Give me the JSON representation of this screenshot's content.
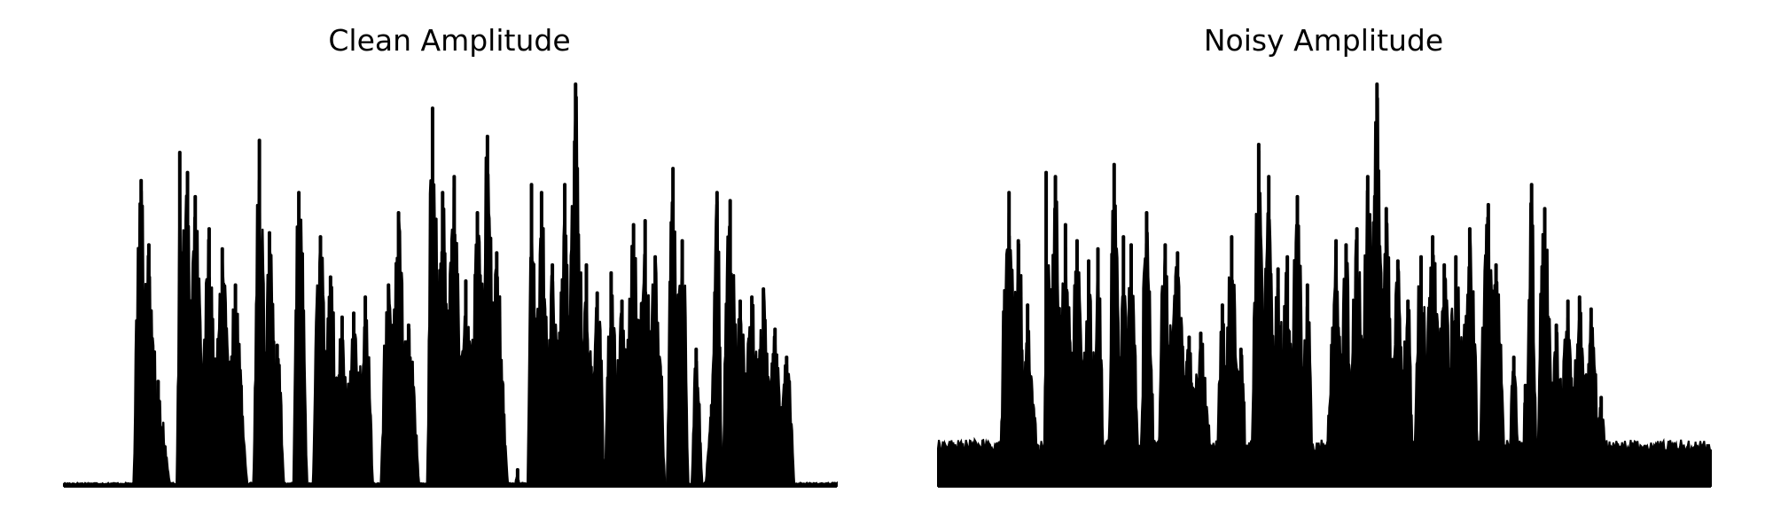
{
  "charts": [
    {
      "title": "Clean Amplitude"
    },
    {
      "title": "Noisy Amplitude"
    }
  ],
  "chart_data": [
    {
      "type": "area",
      "title": "Clean Amplitude",
      "xlabel": "",
      "ylabel": "",
      "axes": "off",
      "grid": false,
      "ylim": [
        0,
        1
      ],
      "color": "#000000",
      "noise_floor": 0.0,
      "segments": [
        {
          "start": 0.09,
          "end": 0.138,
          "peaks": [
            [
              0.1,
              0.76
            ],
            [
              0.11,
              0.6
            ],
            [
              0.122,
              0.26
            ]
          ]
        },
        {
          "start": 0.146,
          "end": 0.238,
          "peaks": [
            [
              0.15,
              0.83
            ],
            [
              0.16,
              0.78
            ],
            [
              0.17,
              0.72
            ],
            [
              0.188,
              0.64
            ],
            [
              0.205,
              0.59
            ],
            [
              0.222,
              0.5
            ]
          ]
        },
        {
          "start": 0.245,
          "end": 0.285,
          "peaks": [
            [
              0.253,
              0.86
            ],
            [
              0.266,
              0.63
            ],
            [
              0.276,
              0.35
            ]
          ]
        },
        {
          "start": 0.297,
          "end": 0.315,
          "peaks": [
            [
              0.304,
              0.73
            ]
          ]
        },
        {
          "start": 0.322,
          "end": 0.4,
          "peaks": [
            [
              0.332,
              0.62
            ],
            [
              0.345,
              0.52
            ],
            [
              0.36,
              0.42
            ],
            [
              0.375,
              0.43
            ],
            [
              0.39,
              0.47
            ]
          ]
        },
        {
          "start": 0.41,
          "end": 0.46,
          "peaks": [
            [
              0.42,
              0.5
            ],
            [
              0.433,
              0.68
            ],
            [
              0.446,
              0.4
            ]
          ]
        },
        {
          "start": 0.47,
          "end": 0.575,
          "peaks": [
            [
              0.477,
              0.94
            ],
            [
              0.49,
              0.73
            ],
            [
              0.505,
              0.77
            ],
            [
              0.52,
              0.51
            ],
            [
              0.535,
              0.68
            ],
            [
              0.548,
              0.87
            ],
            [
              0.56,
              0.58
            ]
          ]
        },
        {
          "start": 0.583,
          "end": 0.59,
          "peaks": [
            [
              0.587,
              0.04
            ]
          ]
        },
        {
          "start": 0.6,
          "end": 0.7,
          "peaks": [
            [
              0.605,
              0.75
            ],
            [
              0.618,
              0.73
            ],
            [
              0.632,
              0.55
            ],
            [
              0.648,
              0.75
            ],
            [
              0.662,
              1.0
            ],
            [
              0.676,
              0.55
            ],
            [
              0.69,
              0.48
            ]
          ]
        },
        {
          "start": 0.7,
          "end": 0.778,
          "peaks": [
            [
              0.708,
              0.53
            ],
            [
              0.722,
              0.46
            ],
            [
              0.737,
              0.65
            ],
            [
              0.752,
              0.66
            ],
            [
              0.765,
              0.57
            ]
          ]
        },
        {
          "start": 0.78,
          "end": 0.808,
          "peaks": [
            [
              0.788,
              0.79
            ],
            [
              0.8,
              0.61
            ]
          ]
        },
        {
          "start": 0.812,
          "end": 0.826,
          "peaks": [
            [
              0.818,
              0.34
            ]
          ]
        },
        {
          "start": 0.83,
          "end": 0.852,
          "peaks": [
            [
              0.838,
              0.2
            ],
            [
              0.845,
              0.73
            ]
          ]
        },
        {
          "start": 0.852,
          "end": 0.945,
          "peaks": [
            [
              0.862,
              0.71
            ],
            [
              0.875,
              0.46
            ],
            [
              0.89,
              0.47
            ],
            [
              0.905,
              0.49
            ],
            [
              0.92,
              0.39
            ],
            [
              0.935,
              0.32
            ]
          ]
        }
      ]
    },
    {
      "type": "area",
      "title": "Noisy Amplitude",
      "xlabel": "",
      "ylabel": "",
      "axes": "off",
      "grid": false,
      "ylim": [
        0,
        1
      ],
      "color": "#000000",
      "noise_floor": 0.1,
      "segments": [
        {
          "start": 0.08,
          "end": 0.13,
          "peaks": [
            [
              0.092,
              0.73
            ],
            [
              0.104,
              0.61
            ],
            [
              0.116,
              0.45
            ]
          ]
        },
        {
          "start": 0.137,
          "end": 0.215,
          "peaks": [
            [
              0.14,
              0.78
            ],
            [
              0.152,
              0.77
            ],
            [
              0.165,
              0.65
            ],
            [
              0.18,
              0.61
            ],
            [
              0.195,
              0.56
            ],
            [
              0.207,
              0.59
            ]
          ]
        },
        {
          "start": 0.22,
          "end": 0.26,
          "peaks": [
            [
              0.228,
              0.8
            ],
            [
              0.24,
              0.62
            ],
            [
              0.25,
              0.6
            ]
          ]
        },
        {
          "start": 0.262,
          "end": 0.28,
          "peaks": [
            [
              0.27,
              0.68
            ]
          ]
        },
        {
          "start": 0.285,
          "end": 0.355,
          "peaks": [
            [
              0.294,
              0.6
            ],
            [
              0.31,
              0.58
            ],
            [
              0.325,
              0.37
            ],
            [
              0.34,
              0.38
            ]
          ]
        },
        {
          "start": 0.36,
          "end": 0.4,
          "peaks": [
            [
              0.368,
              0.45
            ],
            [
              0.38,
              0.62
            ],
            [
              0.392,
              0.34
            ]
          ]
        },
        {
          "start": 0.405,
          "end": 0.485,
          "peaks": [
            [
              0.415,
              0.85
            ],
            [
              0.428,
              0.77
            ],
            [
              0.44,
              0.54
            ],
            [
              0.452,
              0.57
            ],
            [
              0.465,
              0.72
            ],
            [
              0.478,
              0.5
            ]
          ]
        },
        {
          "start": 0.5,
          "end": 0.615,
          "peaks": [
            [
              0.515,
              0.61
            ],
            [
              0.528,
              0.6
            ],
            [
              0.542,
              0.64
            ],
            [
              0.556,
              0.77
            ],
            [
              0.568,
              1.0
            ],
            [
              0.58,
              0.69
            ],
            [
              0.595,
              0.56
            ],
            [
              0.608,
              0.46
            ]
          ]
        },
        {
          "start": 0.615,
          "end": 0.7,
          "peaks": [
            [
              0.625,
              0.57
            ],
            [
              0.64,
              0.62
            ],
            [
              0.655,
              0.55
            ],
            [
              0.67,
              0.57
            ],
            [
              0.688,
              0.64
            ]
          ]
        },
        {
          "start": 0.7,
          "end": 0.735,
          "peaks": [
            [
              0.712,
              0.7
            ],
            [
              0.722,
              0.55
            ]
          ]
        },
        {
          "start": 0.738,
          "end": 0.752,
          "peaks": [
            [
              0.745,
              0.32
            ]
          ]
        },
        {
          "start": 0.755,
          "end": 0.775,
          "peaks": [
            [
              0.76,
              0.25
            ],
            [
              0.768,
              0.75
            ]
          ]
        },
        {
          "start": 0.775,
          "end": 0.865,
          "peaks": [
            [
              0.785,
              0.69
            ],
            [
              0.8,
              0.4
            ],
            [
              0.815,
              0.46
            ],
            [
              0.83,
              0.47
            ],
            [
              0.845,
              0.44
            ],
            [
              0.858,
              0.22
            ]
          ]
        }
      ]
    }
  ]
}
